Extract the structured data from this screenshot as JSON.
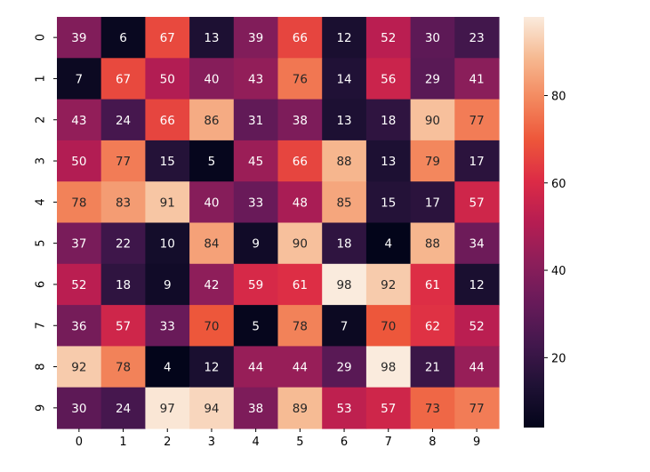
{
  "chart_data": {
    "type": "heatmap",
    "title": "",
    "xlabel": "",
    "ylabel": "",
    "x_categories": [
      "0",
      "1",
      "2",
      "3",
      "4",
      "5",
      "6",
      "7",
      "8",
      "9"
    ],
    "y_categories": [
      "0",
      "1",
      "2",
      "3",
      "4",
      "5",
      "6",
      "7",
      "8",
      "9"
    ],
    "values": [
      [
        39,
        6,
        67,
        13,
        39,
        66,
        12,
        52,
        30,
        23
      ],
      [
        7,
        67,
        50,
        40,
        43,
        76,
        14,
        56,
        29,
        41
      ],
      [
        43,
        24,
        66,
        86,
        31,
        38,
        13,
        18,
        90,
        77
      ],
      [
        50,
        77,
        15,
        5,
        45,
        66,
        88,
        13,
        79,
        17
      ],
      [
        78,
        83,
        91,
        40,
        33,
        48,
        85,
        15,
        17,
        57
      ],
      [
        37,
        22,
        10,
        84,
        9,
        90,
        18,
        4,
        88,
        34
      ],
      [
        52,
        18,
        9,
        42,
        59,
        61,
        98,
        92,
        61,
        12
      ],
      [
        36,
        57,
        33,
        70,
        5,
        78,
        7,
        70,
        62,
        52
      ],
      [
        92,
        78,
        4,
        12,
        44,
        44,
        29,
        98,
        21,
        44
      ],
      [
        30,
        24,
        97,
        94,
        38,
        89,
        53,
        57,
        73,
        77
      ]
    ],
    "annotated": true,
    "colormap": "rocket",
    "vmin": 4,
    "vmax": 98,
    "colorbar": {
      "ticks": [
        20,
        40,
        60,
        80
      ],
      "tick_labels": [
        "20",
        "40",
        "60",
        "80"
      ],
      "placement": "right"
    },
    "grid": false
  }
}
